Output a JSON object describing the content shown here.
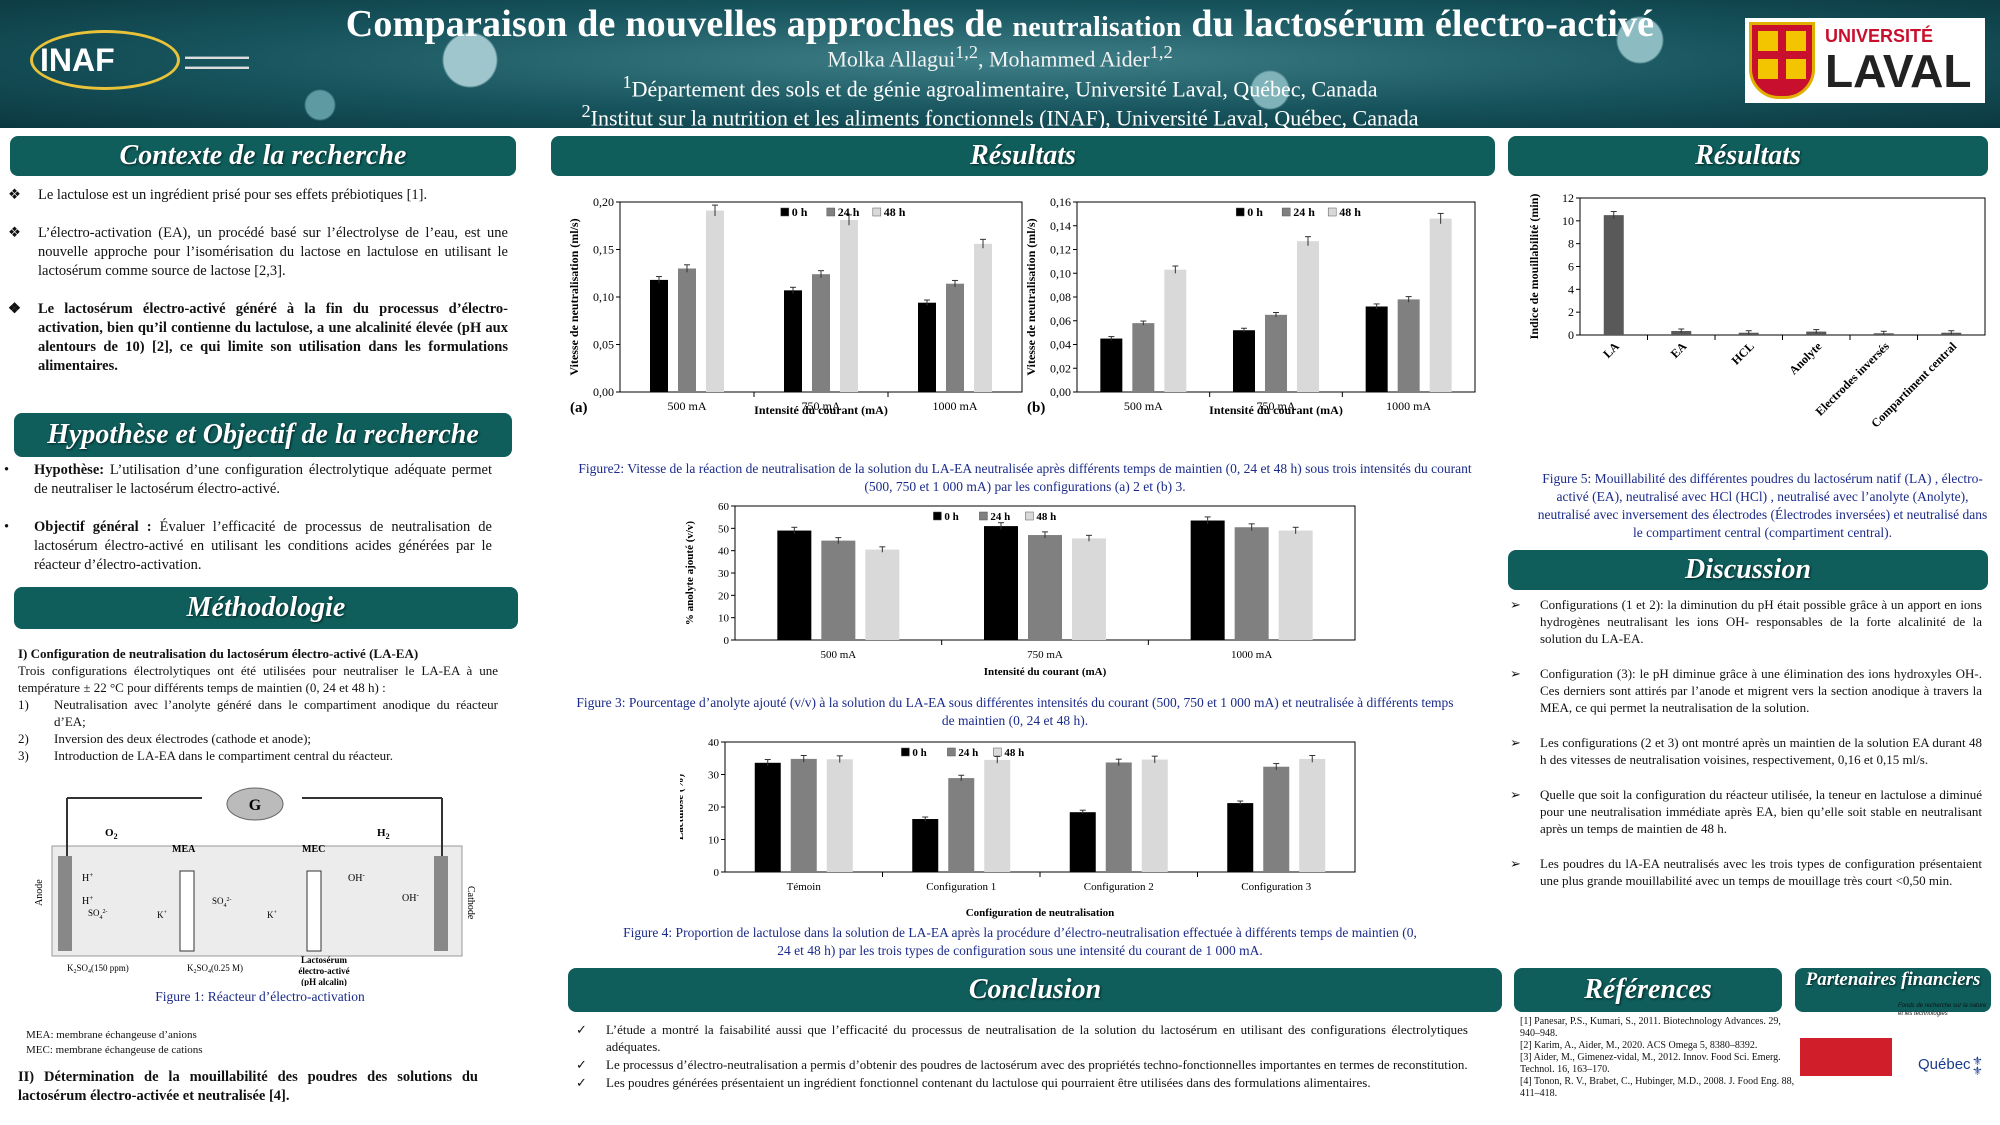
{
  "header": {
    "title_a": "Comparaison de nouvelles approches de ",
    "title_b": "neutralisation",
    "title_c": " du lactosérum électro-activé",
    "authors": "Molka Allagui1,2, Mohammed Aider1,2",
    "aff1": "1Département des sols et de génie agroalimentaire, Université Laval, Québec, Canada",
    "aff2": "2Institut sur la nutrition et les aliments fonctionnels (INAF), Université Laval, Québec, Canada",
    "logo_inaf": "INAF",
    "logo_ul_a": "UNIVERSITÉ",
    "logo_ul_b": "LAVAL"
  },
  "contexte": {
    "heading": "Contexte de la recherche",
    "items": [
      "Le lactulose est un ingrédient prisé pour ses effets prébiotiques [1].",
      "L’électro-activation (EA), un procédé basé sur l’électrolyse de l’eau, est une nouvelle approche pour l’isomérisation du lactose en lactulose en utilisant le lactosérum comme source de lactose [2,3].",
      "Le lactosérum électro-activé généré à la fin du processus d’électro-activation, bien qu’il contienne du lactulose, a une alcalinité élevée (pH aux alentours de 10)  [2], ce qui limite son utilisation dans les formulations alimentaires."
    ]
  },
  "hypothese": {
    "heading": "Hypothèse et Objectif de la recherche",
    "h_label": "Hypothèse:",
    "h_text": " L’utilisation d’une configuration électrolytique adéquate permet de neutraliser le lactosérum électro-activé.",
    "o_label": "Objectif général :",
    "o_text": " Évaluer l’efficacité de processus de neutralisation de lactosérum électro-activé en utilisant les conditions acides générées par le réacteur d’électro-activation."
  },
  "methodologie": {
    "heading": "Méthodologie",
    "sub1": "I) Configuration de neutralisation du lactosérum électro-activé (LA-EA)",
    "intro": "Trois configurations électrolytiques ont été utilisées pour neutraliser le LA-EA à une température ± 22 °C  pour différents temps de maintien (0, 24 et 48 h) :",
    "items": [
      {
        "n": "1)",
        "t": "Neutralisation avec l’anolyte généré dans le compartiment anodique du réacteur d’EA;"
      },
      {
        "n": "2)",
        "t": "Inversion des deux électrodes (cathode et anode);"
      },
      {
        "n": "3)",
        "t": "Introduction de LA-EA dans le compartiment central du réacteur."
      }
    ],
    "fig1": "Figure 1: Réacteur d’électro-activation",
    "mea": "MEA: membrane échangeuse d’anions",
    "mec": "MEC: membrane échangeuse de cations",
    "sub2": "II) Détermination de la mouillabilité des poudres des solutions du lactosérum électro-activée et neutralisée [4].",
    "diagram": {
      "g": "G",
      "anode": "Anode",
      "cathode": "Cathode",
      "o2": "O",
      "h2": "H",
      "mea": "MEA",
      "mec": "MEC",
      "k2so4a": "K2SO4(150 ppm)",
      "k2so4b": "K2SO4(0.25 M)",
      "lacto1": "Lactosérum",
      "lacto2": "électro-activé",
      "lacto3": "(pH alcalin)",
      "hplus": "H+",
      "so4": "SO42-",
      "kplus": "K+",
      "ohm": "OH-"
    }
  },
  "resultats1": {
    "heading": "Résultats",
    "fig2": "Figure2: Vitesse de la réaction de neutralisation de la solution du LA-EA neutralisée après différents temps de maintien (0, 24 et 48 h)  sous  trois intensités du courant (500, 750 et 1 000 mA) par les configurations  (a) 2 et  (b) 3.",
    "fig3": "Figure 3: Pourcentage  d’anolyte ajouté (v/v) à la solution du LA-EA  sous différentes intensités du courant (500, 750 et 1 000 mA) et neutralisée à différents temps de maintien (0, 24 et 48 h).",
    "fig4": "Figure 4: Proportion de lactulose dans la solution de LA-EA  après la procédure d’électro-neutralisation effectuée à différents temps de maintien (0, 24 et 48 h) par les trois types de configuration sous une intensité du courant de 1 000 mA."
  },
  "resultats2": {
    "heading": "Résultats",
    "fig5": "Figure 5: Mouillabilité des différentes poudres du lactosérum natif (LA) , électro-activé (EA), neutralisé avec HCl (HCl) , neutralisé avec l’anolyte (Anolyte), neutralisé avec inversement des électrodes (Électrodes inversées) et neutralisé dans le compartiment central (compartiment central)."
  },
  "discussion": {
    "heading": "Discussion",
    "items": [
      "Configurations (1 et 2): la diminution du pH était possible grâce à un apport en ions hydrogènes neutralisant les ions OH- responsables de la forte alcalinité de la solution du LA-EA.",
      "Configuration (3): le pH diminue grâce à une élimination des ions hydroxyles OH-. Ces derniers sont attirés par l’anode et migrent vers la section anodique à travers la MEA, ce qui permet la neutralisation de la solution.",
      "Les configurations (2 et 3) ont montré après un maintien de la solution EA durant 48 h des vitesses de neutralisation voisines, respectivement, 0,16 et 0,15 ml/s.",
      "Quelle que soit la configuration du réacteur utilisée, la teneur en lactulose a diminué pour une neutralisation immédiate après EA, bien qu’elle soit stable en neutralisant après  un temps de maintien de 48 h.",
      " Les poudres du lA-EA neutralisés avec les trois types de configuration présentaient une plus grande mouillabilité avec un temps de mouillage très court <0,50 min."
    ]
  },
  "conclusion": {
    "heading": "Conclusion",
    "items": [
      "L’étude a montré la  faisabilité aussi que l’efficacité du processus de neutralisation de la solution du lactosérum en utilisant des configurations électrolytiques adéquates.",
      "Le processus d’électro-neutralisation a permis d’obtenir des poudres de lactosérum avec des propriétés techno-fonctionnelles importantes en termes de reconstitution.",
      "Les poudres générées  présentaient un ingrédient fonctionnel contenant du lactulose qui pourraient être utilisées dans des formulations alimentaires."
    ]
  },
  "references": {
    "heading": "Références",
    "items": [
      "[1]  Panesar,  P.S.,  Kumari,  S.,  2011.  Biotechnology Advances. 29, 940–948.",
      "[2]   Karim,  A.,  Aider,  M.,  2020.  ACS Omega 5, 8380–8392.",
      "[3]  Aider, M., Gimenez-vidal, M., 2012. Innov. Food Sci. Emerg. Technol. 16, 163–170.",
      "[4]   Tonon, R. V., Brabet, C., Hubinger, M.D., 2008. J. Food Eng. 88, 411–418."
    ]
  },
  "partenaires": {
    "heading": "Partenaires financiers",
    "fonds": "Fonds de recherche sur la nature et les technologies",
    "quebec": "Québec"
  },
  "chart_data": [
    {
      "id": "fig2a",
      "type": "bar",
      "panel": "(a)",
      "ylabel": "Vitesse de neutralisation (ml/s)",
      "xlabel": "Intensité du courant (mA)",
      "categories": [
        "500 mA",
        "750 mA",
        "1000 mA"
      ],
      "ylim": [
        0,
        0.2
      ],
      "yticks": [
        "0,00",
        "0,05",
        "0,10",
        "0,15",
        "0,20"
      ],
      "legend_position": "top-right",
      "series": [
        {
          "name": "0 h",
          "values": [
            0.118,
            0.107,
            0.094
          ]
        },
        {
          "name": "24 h",
          "values": [
            0.13,
            0.124,
            0.114
          ]
        },
        {
          "name": "48 h",
          "values": [
            0.191,
            0.181,
            0.156
          ]
        }
      ]
    },
    {
      "id": "fig2b",
      "type": "bar",
      "panel": "(b)",
      "ylabel": "Vitesse de neutralisation (ml/s)",
      "xlabel": "Intensité du courant (mA)",
      "categories": [
        "500 mA",
        "750 mA",
        "1000 mA"
      ],
      "ylim": [
        0,
        0.16
      ],
      "yticks": [
        "0,00",
        "0,02",
        "0,04",
        "0,06",
        "0,08",
        "0,10",
        "0,12",
        "0,14",
        "0,16"
      ],
      "legend_position": "top-right",
      "series": [
        {
          "name": "0 h",
          "values": [
            0.045,
            0.052,
            0.072
          ]
        },
        {
          "name": "24 h",
          "values": [
            0.058,
            0.065,
            0.078
          ]
        },
        {
          "name": "48 h",
          "values": [
            0.103,
            0.127,
            0.146
          ]
        }
      ]
    },
    {
      "id": "fig3",
      "type": "bar",
      "ylabel": "% anolyte ajouté (v/v)",
      "xlabel": "Intensité du courant (mA)",
      "categories": [
        "500 mA",
        "750 mA",
        "1000 mA"
      ],
      "ylim": [
        0,
        60
      ],
      "yticks": [
        "0",
        "10",
        "20",
        "30",
        "40",
        "50",
        "60"
      ],
      "legend_position": "top-center",
      "series": [
        {
          "name": "0 h",
          "values": [
            49,
            51,
            53.5
          ]
        },
        {
          "name": "24 h",
          "values": [
            44.5,
            47,
            50.5
          ]
        },
        {
          "name": "48 h",
          "values": [
            40.5,
            45.5,
            49
          ]
        }
      ]
    },
    {
      "id": "fig4",
      "type": "bar",
      "ylabel": "Lactulose (%)",
      "xlabel": "Configuration de neutralisation",
      "categories": [
        "Témoin",
        "Configuration 1",
        "Configuration 2",
        "Configuration 3"
      ],
      "ylim": [
        0,
        40
      ],
      "yticks": [
        "0",
        "10",
        "20",
        "30",
        "40"
      ],
      "legend_position": "top-center",
      "series": [
        {
          "name": "0 h",
          "values": [
            33.6,
            16.3,
            18.4,
            21.2
          ]
        },
        {
          "name": "24 h",
          "values": [
            34.8,
            28.9,
            33.7,
            32.4
          ]
        },
        {
          "name": "48 h",
          "values": [
            34.7,
            34.5,
            34.6,
            34.8
          ]
        }
      ]
    },
    {
      "id": "fig5",
      "type": "bar",
      "ylabel": "Indice de mouillabilité (min)",
      "categories": [
        "LA",
        "EA",
        "HCL",
        "Anolyte",
        "Electrodes inversés",
        "Compartiment central"
      ],
      "ylim": [
        0,
        12
      ],
      "yticks": [
        "0",
        "2",
        "4",
        "6",
        "8",
        "10",
        "12"
      ],
      "series": [
        {
          "values": [
            10.5,
            0.35,
            0.2,
            0.3,
            0.15,
            0.2
          ]
        }
      ]
    }
  ],
  "colors": {
    "accent": "#0f5e5c",
    "bar0": "#000000",
    "bar1": "#808080",
    "bar2": "#d9d9d9",
    "fig5bar": "#595959",
    "caption": "#1a2a8a"
  }
}
